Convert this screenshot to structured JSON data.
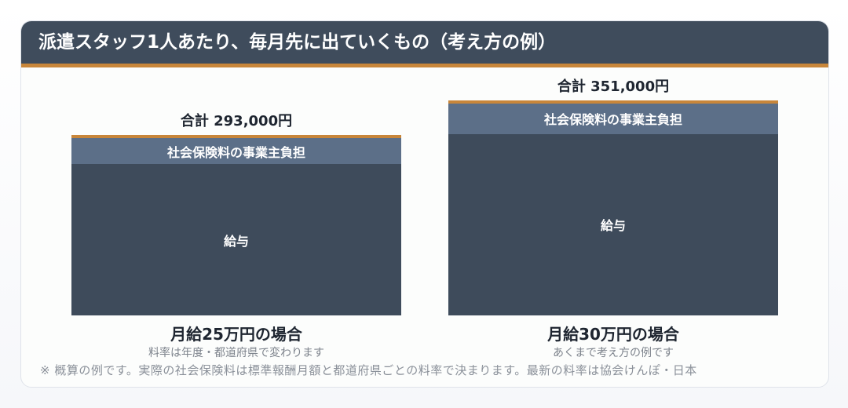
{
  "header": {
    "title": "派遣スタッフ1人あたり、毎月先に出ていくもの（考え方の例）"
  },
  "chart_data": {
    "type": "bar",
    "stacked": true,
    "title": "派遣スタッフ1人あたり、毎月先に出ていくもの（考え方の例）",
    "categories": [
      "月給25万円の場合",
      "月給30万円の場合"
    ],
    "category_notes": [
      "料率は年度・都道府県で変わります",
      "あくまで考え方の例です"
    ],
    "series": [
      {
        "name": "給与",
        "values": [
          250000,
          300000
        ]
      },
      {
        "name": "社会保険料の事業主負担",
        "values": [
          43000,
          51000
        ]
      }
    ],
    "totals": [
      293000,
      351000
    ],
    "total_labels": [
      "合計 293,000円",
      "合計 351,000円"
    ],
    "colors": {
      "salary": "#3e4b5b",
      "insurance": "#5c6f88",
      "accent": "#c8863a"
    }
  },
  "footnote": "※ 概算の例です。実際の社会保険料は標準報酬月額と都道府県ごとの料率で決まります。最新の料率は協会けんぽ・日本"
}
